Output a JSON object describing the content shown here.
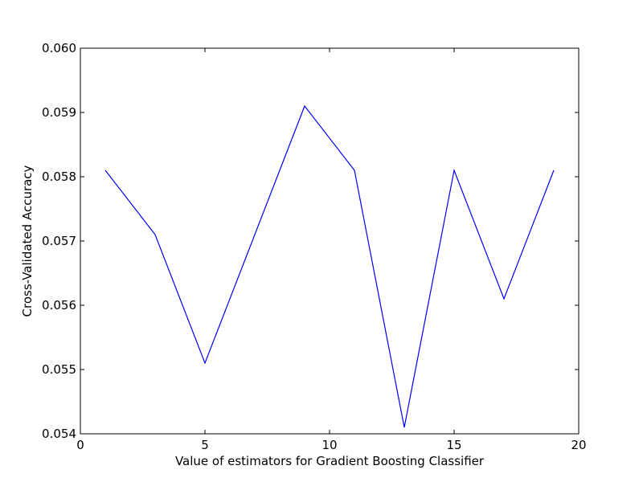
{
  "chart_data": {
    "type": "line",
    "title": "",
    "xlabel": "Value of estimators for Gradient Boosting Classifier",
    "ylabel": "Cross-Validated Accuracy",
    "xlim": [
      0,
      20
    ],
    "ylim": [
      0.054,
      0.06
    ],
    "xticks": [
      0,
      5,
      10,
      15,
      20
    ],
    "xtick_labels": [
      "0",
      "5",
      "10",
      "15",
      "20"
    ],
    "yticks": [
      0.054,
      0.055,
      0.056,
      0.057,
      0.058,
      0.059,
      0.06
    ],
    "ytick_labels": [
      "0.054",
      "0.055",
      "0.056",
      "0.057",
      "0.058",
      "0.059",
      "0.060"
    ],
    "grid": false,
    "series": [
      {
        "color": "#0000ff",
        "x": [
          1,
          3,
          5,
          7,
          9,
          11,
          13,
          15,
          17,
          19
        ],
        "y": [
          0.0581,
          0.0571,
          0.0551,
          0.0571,
          0.0591,
          0.0581,
          0.0541,
          0.0581,
          0.0561,
          0.0581
        ]
      }
    ]
  }
}
